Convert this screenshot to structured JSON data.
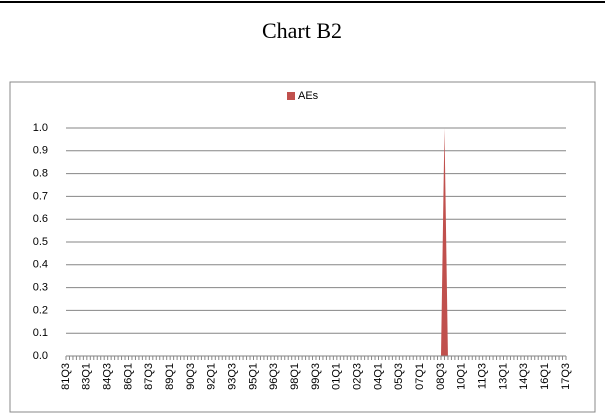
{
  "chart_data": {
    "type": "area",
    "title": "Chart B2",
    "legend": "top",
    "series": [
      {
        "name": "AEs",
        "color": "#c0504d",
        "values": [
          0,
          0,
          0,
          0,
          0,
          0,
          0,
          0,
          0,
          0,
          0,
          0,
          0,
          0,
          0,
          0,
          0,
          0,
          0,
          0,
          0,
          0,
          0,
          0,
          0,
          0,
          0,
          0,
          0,
          0,
          0,
          0,
          0,
          0,
          0,
          0,
          0,
          0,
          0,
          0,
          0,
          0,
          0,
          0,
          0,
          0,
          0,
          0,
          0,
          0,
          0,
          0,
          0,
          0,
          0,
          0,
          0,
          0,
          0,
          0,
          0,
          0,
          0,
          0,
          0,
          0,
          0,
          0,
          0,
          0,
          0,
          0,
          0,
          0,
          0,
          0,
          0,
          0,
          0,
          0,
          0,
          0,
          0,
          0,
          0,
          0,
          0,
          0,
          0,
          0,
          0,
          0,
          0,
          0,
          0,
          0,
          0,
          0,
          0,
          0,
          0,
          0,
          0,
          0,
          0,
          0,
          0,
          0,
          0,
          1,
          0,
          0,
          0,
          0,
          0,
          0,
          0,
          0,
          0,
          0,
          0,
          0,
          0,
          0,
          0,
          0,
          0,
          0,
          0,
          0,
          0,
          0,
          0,
          0,
          0,
          0,
          0,
          0,
          0,
          0,
          0,
          0,
          0,
          0,
          0
        ]
      }
    ],
    "categories": [
      "81Q3",
      null,
      null,
      null,
      null,
      null,
      "83Q1",
      null,
      null,
      null,
      null,
      null,
      "84Q3",
      null,
      null,
      null,
      null,
      null,
      "86Q1",
      null,
      null,
      null,
      null,
      null,
      "87Q3",
      null,
      null,
      null,
      null,
      null,
      "89Q1",
      null,
      null,
      null,
      null,
      null,
      "90Q3",
      null,
      null,
      null,
      null,
      null,
      "92Q1",
      null,
      null,
      null,
      null,
      null,
      "93Q3",
      null,
      null,
      null,
      null,
      null,
      "95Q1",
      null,
      null,
      null,
      null,
      null,
      "96Q3",
      null,
      null,
      null,
      null,
      null,
      "98Q1",
      null,
      null,
      null,
      null,
      null,
      "99Q3",
      null,
      null,
      null,
      null,
      null,
      "01Q1",
      null,
      null,
      null,
      null,
      null,
      "02Q3",
      null,
      null,
      null,
      null,
      null,
      "04Q1",
      null,
      null,
      null,
      null,
      null,
      "05Q3",
      null,
      null,
      null,
      null,
      null,
      "07Q1",
      null,
      null,
      null,
      null,
      null,
      "08Q3",
      null,
      null,
      null,
      null,
      null,
      "10Q1",
      null,
      null,
      null,
      null,
      null,
      "11Q3",
      null,
      null,
      null,
      null,
      null,
      "13Q1",
      null,
      null,
      null,
      null,
      null,
      "14Q3",
      null,
      null,
      null,
      null,
      null,
      "16Q1",
      null,
      null,
      null,
      null,
      null,
      "17Q3"
    ],
    "ylim": [
      0,
      1
    ],
    "yticks": [
      {
        "value": 0,
        "label": "0.0"
      },
      0.1,
      0.2,
      0.3,
      0.4,
      0.5,
      0.6,
      0.7,
      0.8,
      0.9,
      {
        "value": 1,
        "label": "1.0"
      }
    ],
    "grid": true
  }
}
